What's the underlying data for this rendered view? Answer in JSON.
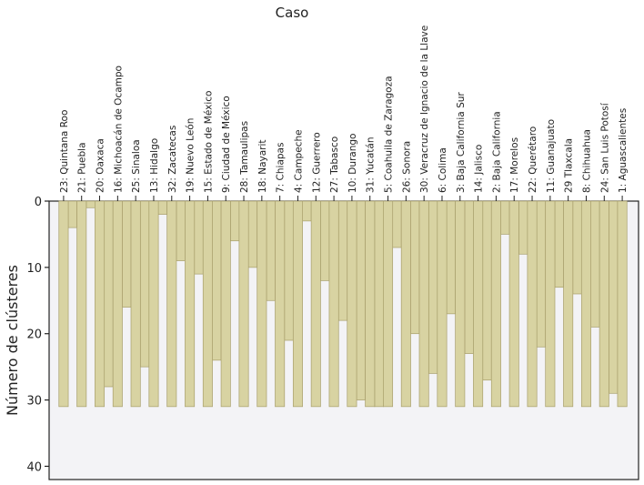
{
  "chart_data": {
    "type": "icicle",
    "title": "Caso",
    "xlabel": "",
    "ylabel": "Número de clústeres",
    "ylim": [
      0,
      42
    ],
    "yticks": [
      0,
      10,
      20,
      30,
      40
    ],
    "categories": [
      "23: Quintana Roo",
      "21: Puebla",
      "20: Oaxaca",
      "16: Michoacán de Ocampo",
      "25: Sinaloa",
      "13: Hidalgo",
      "32: Zacatecas",
      "19: Nuevo León",
      "15: Estado de México",
      "9: Ciudad de México",
      "28: Tamaulipas",
      "18: Nayarit",
      "7: Chiapas",
      "4: Campeche",
      "12: Guerrero",
      "27: Tabasco",
      "10: Durango",
      "31: Yucatán",
      "5: Coahuila de Zaragoza",
      "26: Sonora",
      "30: Veracruz de Ignacio de la Llave",
      "6: Colima",
      "3: Baja California Sur",
      "14: Jalisco",
      "2: Baja California",
      "17: Morelos",
      "22: Querétaro",
      "11: Guanajuato",
      "29 Tlaxcala",
      "8: Chihuahua",
      "24: San Luis Potosí",
      "1: Aguascalientes"
    ],
    "case_bar_bottom": 31,
    "gap_fill_to": [
      4,
      1,
      28,
      16,
      25,
      2,
      9,
      11,
      24,
      6,
      10,
      15,
      21,
      3,
      12,
      18,
      30,
      31,
      7,
      20,
      26,
      17,
      23,
      27,
      5,
      8,
      22,
      13,
      14,
      19,
      29
    ],
    "colors": {
      "bar_fill": "#d8d3a2",
      "bar_edge": "#a89f6c",
      "plot_bg": "#f3f3f6",
      "axis": "#222222"
    }
  }
}
